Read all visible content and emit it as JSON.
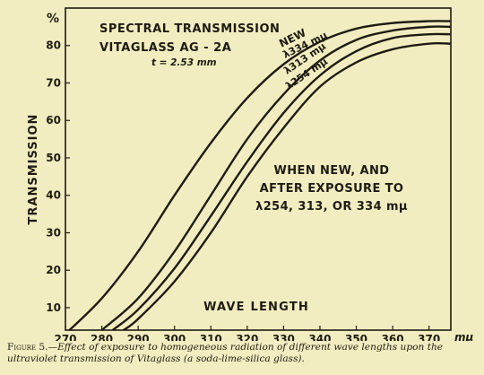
{
  "chart_data": {
    "type": "line",
    "title": "SPECTRAL TRANSMISSION",
    "subtitle": "VITAGLASS AG - 2A",
    "thickness_note": "t = 2.53 mm",
    "xlabel": "WAVE LENGTH",
    "x_unit": "mμ",
    "ylabel": "TRANSMISSION",
    "y_unit": "%",
    "xlim": [
      270,
      376
    ],
    "ylim": [
      4,
      90
    ],
    "xticks": [
      270,
      280,
      290,
      300,
      310,
      320,
      330,
      340,
      350,
      360,
      370
    ],
    "yticks": [
      10,
      20,
      30,
      40,
      50,
      60,
      70,
      80
    ],
    "grid": false,
    "series": [
      {
        "name": "NEW",
        "x": [
          270,
          280,
          290,
          300,
          310,
          320,
          330,
          340,
          350,
          360,
          370,
          376
        ],
        "y": [
          3,
          12.5,
          25,
          40,
          54,
          66,
          75,
          81,
          84.5,
          86,
          86.5,
          86.5
        ]
      },
      {
        "name": "λ334 mμ",
        "x": [
          280,
          290,
          300,
          310,
          320,
          330,
          340,
          350,
          360,
          370,
          376
        ],
        "y": [
          4,
          12.5,
          25,
          40,
          55,
          67,
          76,
          81.5,
          84,
          85,
          85
        ]
      },
      {
        "name": "λ313 mμ",
        "x": [
          283,
          290,
          300,
          310,
          320,
          330,
          340,
          350,
          360,
          370,
          376
        ],
        "y": [
          4,
          9.5,
          20.5,
          34.5,
          49,
          62,
          72,
          78.5,
          82,
          83,
          83
        ]
      },
      {
        "name": "λ254 mμ",
        "x": [
          286,
          290,
          300,
          310,
          320,
          330,
          340,
          350,
          360,
          370,
          376
        ],
        "y": [
          4,
          7,
          17,
          30,
          45,
          58,
          69,
          75.5,
          79,
          80.5,
          80.5
        ]
      }
    ],
    "annotation": [
      "WHEN NEW, AND",
      "AFTER EXPOSURE TO",
      "λ254, 313, OR 334 mμ"
    ]
  },
  "caption": {
    "lead": "Figure 5.",
    "text": "—Effect of exposure to homogeneous radiation of different wave lengths upon the ultraviolet transmission of Vitaglass (a soda-lime-silica glass)."
  }
}
